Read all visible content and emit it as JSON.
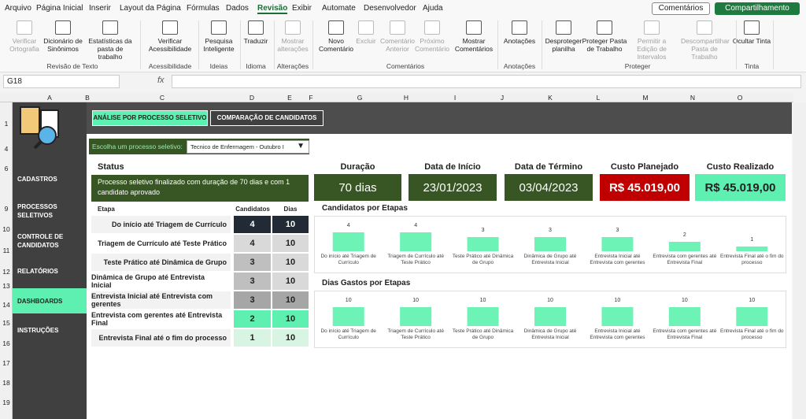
{
  "menu": {
    "tabs": [
      "Arquivo",
      "Página Inicial",
      "Inserir",
      "Layout da Página",
      "Fórmulas",
      "Dados",
      "Revisão",
      "Exibir",
      "Automate",
      "Desenvolvedor",
      "Ajuda"
    ],
    "comments_button": "Comentários",
    "share_button": "Compartilhamento"
  },
  "ribbon": {
    "groups": [
      {
        "label": "Revisão de Texto",
        "items": [
          "Verificar Ortografia",
          "Dicionário de Sinônimos",
          "Estatísticas da pasta de trabalho"
        ]
      },
      {
        "label": "Acessibilidade",
        "items": [
          "Verificar Acessibilidade"
        ]
      },
      {
        "label": "Ideias",
        "items": [
          "Pesquisa Inteligente"
        ]
      },
      {
        "label": "Idioma",
        "items": [
          "Traduzir"
        ]
      },
      {
        "label": "Alterações",
        "items": [
          "Mostrar alterações"
        ]
      },
      {
        "label": "Comentários",
        "items": [
          "Novo Comentário",
          "Excluir",
          "Comentário Anterior",
          "Próximo Comentário",
          "Mostrar Comentários"
        ]
      },
      {
        "label": "Anotações",
        "items": [
          "Anotações"
        ]
      },
      {
        "label": "Proteger",
        "items": [
          "Desproteger planilha",
          "Proteger Pasta de Trabalho",
          "Permitir a Edição de Intervalos",
          "Descompartilhar Pasta de Trabalho"
        ]
      },
      {
        "label": "Tinta",
        "items": [
          "Ocultar Tinta"
        ]
      }
    ]
  },
  "formula_bar": {
    "name_box": "G18",
    "fx": "fx"
  },
  "sheet": {
    "columns": [
      "A",
      "B",
      "C",
      "D",
      "E",
      "F",
      "G",
      "H",
      "I",
      "J",
      "K",
      "L",
      "M",
      "N",
      "O"
    ],
    "rows": [
      "1",
      "4",
      "6",
      "9",
      "10",
      "11",
      "12",
      "13",
      "14",
      "15",
      "16",
      "17",
      "18",
      "19"
    ]
  },
  "dashboard": {
    "buttons": [
      "ANÁLISE POR PROCESSO SELETIVO",
      "COMPARAÇÃO DE CANDIDATOS"
    ],
    "sidebar": [
      "CADASTROS",
      "PROCESSOS SELETIVOS",
      "CONTROLE DE CANDIDATOS",
      "RELATÓRIOS",
      "DASHBOARDS",
      "INSTRUÇÕES"
    ],
    "selector": {
      "label": "Escolha um processo seletivo:",
      "value": "Tecnico de Enfermagem - Outubro I"
    },
    "status": {
      "title": "Status",
      "text": "Processo seletivo finalizado com duração de 70 dias e com 1 candidato aprovado"
    },
    "kpis": [
      {
        "title": "Duração",
        "value": "70 dias"
      },
      {
        "title": "Data de Início",
        "value": "23/01/2023"
      },
      {
        "title": "Data de Término",
        "value": "03/04/2023"
      },
      {
        "title": "Custo Planejado",
        "value": "R$ 45.019,00"
      },
      {
        "title": "Custo Realizado",
        "value": "R$ 45.019,00"
      }
    ],
    "table": {
      "headers": [
        "Etapa",
        "Candidatos",
        "Dias"
      ],
      "rows": [
        [
          "Do início até Triagem de Currículo",
          4,
          10
        ],
        [
          "Triagem de Currículo até Teste Prático",
          4,
          10
        ],
        [
          "Teste Prático até Dinâmica de Grupo",
          3,
          10
        ],
        [
          "Dinâmica de Grupo até Entrevista Inicial",
          3,
          10
        ],
        [
          "Entrevista Inicial até Entrevista com gerentes",
          3,
          10
        ],
        [
          "Entrevista com gerentes até Entrevista Final",
          2,
          10
        ],
        [
          "Entrevista Final até o fim do processo",
          1,
          10
        ]
      ]
    },
    "charts": [
      {
        "type": "bar",
        "title": "Candidatos por Etapas",
        "color": "#6ef3b7",
        "categories": [
          "Do início até Triagem de Currículo",
          "Triagem de Currículo até Teste Prático",
          "Teste Prático até Dinâmica de Grupo",
          "Dinâmica de Grupo até Entrevista Inicial",
          "Entrevista Inicial até Entrevista com gerentes",
          "Entrevista com gerentes até Entrevista Final",
          "Entrevista Final até o fim do processo"
        ],
        "values": [
          4,
          4,
          3,
          3,
          3,
          2,
          1
        ]
      },
      {
        "type": "bar",
        "title": "Dias Gastos por Etapas",
        "color": "#6ef3b7",
        "categories": [
          "Do início até Triagem de Currículo",
          "Triagem de Currículo até Teste Prático",
          "Teste Prático até Dinâmica de Grupo",
          "Dinâmica de Grupo até Entrevista Inicial",
          "Entrevista Inicial até Entrevista com gerentes",
          "Entrevista com gerentes até Entrevista Final",
          "Entrevista Final até o fim do processo"
        ],
        "values": [
          10,
          10,
          10,
          10,
          10,
          10,
          10
        ]
      }
    ]
  }
}
